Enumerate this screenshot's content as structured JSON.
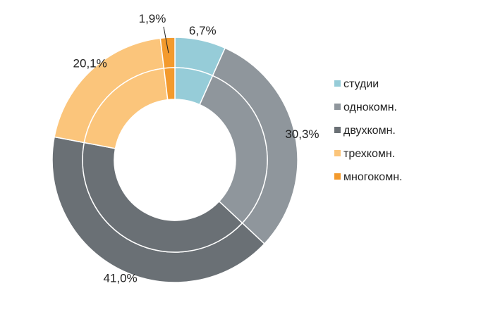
{
  "chart_data": {
    "type": "pie",
    "variant": "double-donut",
    "title": "",
    "categories": [
      "студии",
      "однокомн.",
      "двухкомн.",
      "трехкомн.",
      "многокомн."
    ],
    "values": [
      6.7,
      30.3,
      41.0,
      20.1,
      1.9
    ],
    "value_labels": [
      "6,7%",
      "30,3%",
      "41,0%",
      "20,1%",
      "1,9%"
    ],
    "colors": [
      "#96CCD8",
      "#8F969C",
      "#6A7075",
      "#FBC57B",
      "#F39A2D"
    ],
    "legend": {
      "placement": "right",
      "entries": [
        "студии",
        "однокомн.",
        "двухкомн.",
        "трехкомн.",
        "многокомн."
      ]
    },
    "rings": [
      "outer",
      "inner"
    ]
  }
}
